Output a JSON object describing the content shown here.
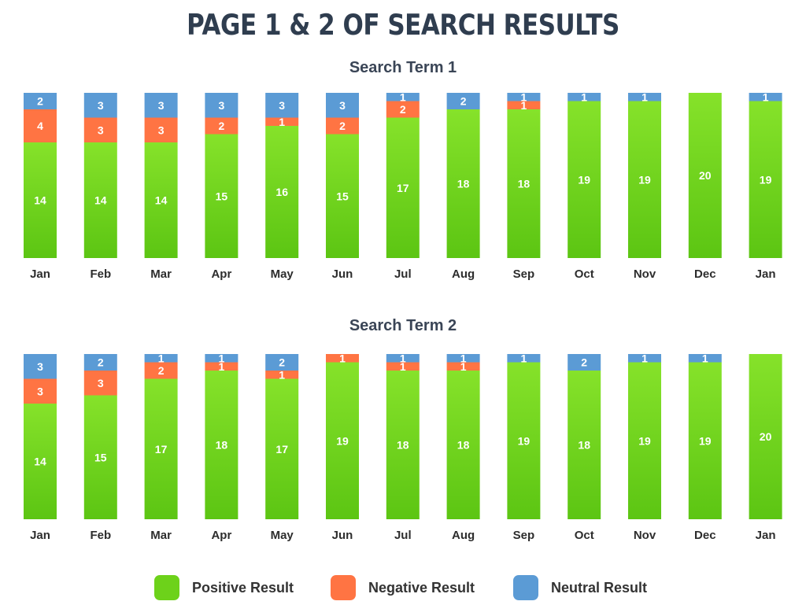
{
  "title": "PAGE 1 & 2 OF SEARCH RESULTS",
  "legend": {
    "placement": "bottom-center",
    "items": [
      {
        "name": "Positive Result",
        "color": "#6dd21a"
      },
      {
        "name": "Negative Result",
        "color": "#ff7443"
      },
      {
        "name": "Neutral Result",
        "color": "#5b9bd5"
      }
    ]
  },
  "chart_data": [
    {
      "type": "bar",
      "stacked": true,
      "title": "Search Term 1",
      "categories": [
        "Jan",
        "Feb",
        "Mar",
        "Apr",
        "May",
        "Jun",
        "Jul",
        "Aug",
        "Sep",
        "Oct",
        "Nov",
        "Dec",
        "Jan"
      ],
      "ylim": [
        0,
        20
      ],
      "grid": false,
      "series": [
        {
          "name": "Positive Result",
          "color": "#6dd21a",
          "values": [
            14,
            14,
            14,
            15,
            16,
            15,
            17,
            18,
            18,
            19,
            19,
            20,
            19
          ]
        },
        {
          "name": "Negative Result",
          "color": "#ff7443",
          "values": [
            4,
            3,
            3,
            2,
            1,
            2,
            2,
            0,
            1,
            0,
            0,
            0,
            0
          ]
        },
        {
          "name": "Neutral Result",
          "color": "#5b9bd5",
          "values": [
            2,
            3,
            3,
            3,
            3,
            3,
            1,
            2,
            1,
            1,
            1,
            0,
            1
          ]
        }
      ]
    },
    {
      "type": "bar",
      "stacked": true,
      "title": "Search Term 2",
      "categories": [
        "Jan",
        "Feb",
        "Mar",
        "Apr",
        "May",
        "Jun",
        "Jul",
        "Aug",
        "Sep",
        "Oct",
        "Nov",
        "Dec",
        "Jan"
      ],
      "ylim": [
        0,
        20
      ],
      "grid": false,
      "series": [
        {
          "name": "Positive Result",
          "color": "#6dd21a",
          "values": [
            14,
            15,
            17,
            18,
            17,
            19,
            18,
            18,
            19,
            18,
            19,
            19,
            20
          ]
        },
        {
          "name": "Negative Result",
          "color": "#ff7443",
          "values": [
            3,
            3,
            2,
            1,
            1,
            1,
            1,
            1,
            0,
            0,
            0,
            0,
            0
          ]
        },
        {
          "name": "Neutral Result",
          "color": "#5b9bd5",
          "values": [
            3,
            2,
            1,
            1,
            2,
            0,
            1,
            1,
            1,
            2,
            1,
            1,
            0
          ]
        }
      ]
    }
  ]
}
